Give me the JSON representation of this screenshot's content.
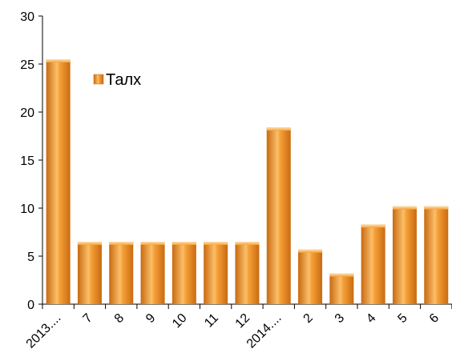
{
  "chart_data": {
    "type": "bar",
    "categories": [
      "2013....",
      "7",
      "8",
      "9",
      "10",
      "11",
      "12",
      "2014....",
      "2",
      "3",
      "4",
      "5",
      "6"
    ],
    "series": [
      {
        "name": "Талх",
        "values": [
          25.5,
          6.5,
          6.5,
          6.5,
          6.5,
          6.5,
          6.5,
          18.4,
          5.7,
          3.2,
          8.3,
          10.2,
          10.2
        ]
      }
    ],
    "ylim": [
      0,
      30
    ],
    "yticks": [
      0,
      5,
      10,
      15,
      20,
      25,
      30
    ],
    "legend": {
      "position": "top-left-inside",
      "label": "Талх"
    },
    "colors": {
      "bar_light": "#fde0b0",
      "bar_mid": "#f7a23a",
      "bar_dark": "#c96a10",
      "axis": "#000000"
    },
    "grid": false
  }
}
